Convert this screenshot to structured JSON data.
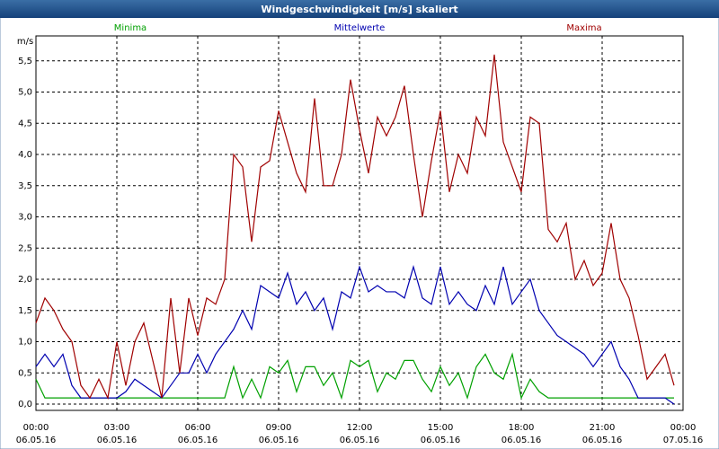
{
  "chart_data": {
    "type": "line",
    "title": "Windgeschwindigkeit [m/s] skaliert",
    "y_label": "m/s",
    "x": [
      0,
      20,
      40,
      60,
      80,
      100,
      120,
      140,
      160,
      180,
      200,
      220,
      240,
      260,
      280,
      300,
      320,
      340,
      360,
      380,
      400,
      420,
      440,
      460,
      480,
      500,
      520,
      540,
      560,
      580,
      600,
      620,
      640,
      660,
      680,
      700,
      720,
      740,
      760,
      780,
      800,
      820,
      840,
      860,
      880,
      900,
      920,
      940,
      960,
      980,
      1000,
      1020,
      1040,
      1060,
      1080,
      1100,
      1120,
      1140,
      1160,
      1180,
      1200,
      1220,
      1240,
      1260,
      1280,
      1300,
      1320,
      1340,
      1360,
      1380,
      1400,
      1420
    ],
    "series": [
      {
        "name": "Minima",
        "color": "#00a000",
        "values": [
          0.4,
          0.1,
          0.1,
          0.1,
          0.1,
          0.1,
          0.1,
          0.1,
          0.1,
          0.1,
          0.1,
          0.1,
          0.1,
          0.1,
          0.1,
          0.1,
          0.1,
          0.1,
          0.1,
          0.1,
          0.1,
          0.1,
          0.6,
          0.1,
          0.4,
          0.1,
          0.6,
          0.5,
          0.7,
          0.2,
          0.6,
          0.6,
          0.3,
          0.5,
          0.1,
          0.7,
          0.6,
          0.7,
          0.2,
          0.5,
          0.4,
          0.7,
          0.7,
          0.4,
          0.2,
          0.6,
          0.3,
          0.5,
          0.1,
          0.6,
          0.8,
          0.5,
          0.4,
          0.8,
          0.1,
          0.4,
          0.2,
          0.1,
          0.1,
          0.1,
          0.1,
          0.1,
          0.1,
          0.1,
          0.1,
          0.1,
          0.1,
          0.1,
          0.1,
          0.1,
          0.1,
          0.1
        ]
      },
      {
        "name": "Mittelwerte",
        "color": "#0000b0",
        "values": [
          0.6,
          0.8,
          0.6,
          0.8,
          0.3,
          0.1,
          0.1,
          0.1,
          0.1,
          0.1,
          0.2,
          0.4,
          0.3,
          0.2,
          0.1,
          0.3,
          0.5,
          0.5,
          0.8,
          0.5,
          0.8,
          1.0,
          1.2,
          1.5,
          1.2,
          1.9,
          1.8,
          1.7,
          2.1,
          1.6,
          1.8,
          1.5,
          1.7,
          1.2,
          1.8,
          1.7,
          2.2,
          1.8,
          1.9,
          1.8,
          1.8,
          1.7,
          2.2,
          1.7,
          1.6,
          2.2,
          1.6,
          1.8,
          1.6,
          1.5,
          1.9,
          1.6,
          2.2,
          1.6,
          1.8,
          2.0,
          1.5,
          1.3,
          1.1,
          1.0,
          0.9,
          0.8,
          0.6,
          0.8,
          1.0,
          0.6,
          0.4,
          0.1,
          0.1,
          0.1,
          0.1,
          0.0
        ]
      },
      {
        "name": "Maxima",
        "color": "#a00000",
        "values": [
          1.3,
          1.7,
          1.5,
          1.2,
          1.0,
          0.3,
          0.1,
          0.4,
          0.1,
          1.0,
          0.3,
          1.0,
          1.3,
          0.7,
          0.1,
          1.7,
          0.5,
          1.7,
          1.1,
          1.7,
          1.6,
          2.0,
          4.0,
          3.8,
          2.6,
          3.8,
          3.9,
          4.7,
          4.2,
          3.7,
          3.4,
          4.9,
          3.5,
          3.5,
          4.0,
          5.2,
          4.4,
          3.7,
          4.6,
          4.3,
          4.6,
          5.1,
          4.0,
          3.0,
          3.9,
          4.7,
          3.4,
          4.0,
          3.7,
          4.6,
          4.3,
          5.6,
          4.2,
          3.8,
          3.4,
          4.6,
          4.5,
          2.8,
          2.6,
          2.9,
          2.0,
          2.3,
          1.9,
          2.1,
          2.9,
          2.0,
          1.7,
          1.1,
          0.4,
          0.6,
          0.8,
          0.3
        ]
      }
    ],
    "xlim": [
      0,
      1440
    ],
    "xticks": [
      {
        "value": 0,
        "label": "00:00",
        "date": "06.05.16"
      },
      {
        "value": 180,
        "label": "03:00",
        "date": "06.05.16"
      },
      {
        "value": 360,
        "label": "06:00",
        "date": "06.05.16"
      },
      {
        "value": 540,
        "label": "09:00",
        "date": "06.05.16"
      },
      {
        "value": 720,
        "label": "12:00",
        "date": "06.05.16"
      },
      {
        "value": 900,
        "label": "15:00",
        "date": "06.05.16"
      },
      {
        "value": 1080,
        "label": "18:00",
        "date": "06.05.16"
      },
      {
        "value": 1260,
        "label": "21:00",
        "date": "06.05.16"
      },
      {
        "value": 1440,
        "label": "00:00",
        "date": "07.05.16"
      }
    ],
    "ylim": [
      -0.1,
      5.9
    ],
    "yticks": [
      {
        "value": 0,
        "label": "0,0"
      },
      {
        "value": 0.5,
        "label": "0,5"
      },
      {
        "value": 1,
        "label": "1,0"
      },
      {
        "value": 1.5,
        "label": "1,5"
      },
      {
        "value": 2,
        "label": "2,0"
      },
      {
        "value": 2.5,
        "label": "2,5"
      },
      {
        "value": 3,
        "label": "3,0"
      },
      {
        "value": 3.5,
        "label": "3,5"
      },
      {
        "value": 4,
        "label": "4,0"
      },
      {
        "value": 4.5,
        "label": "4,5"
      },
      {
        "value": 5,
        "label": "5,0"
      },
      {
        "value": 5.5,
        "label": "5,5"
      }
    ],
    "grid": true
  }
}
